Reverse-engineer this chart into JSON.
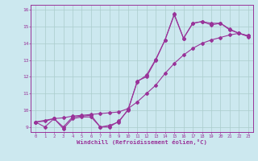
{
  "xlabel": "Windchill (Refroidissement éolien,°C)",
  "bg_color": "#cce8ef",
  "grid_color": "#aacccc",
  "line_color": "#993399",
  "xlim": [
    -0.5,
    23.5
  ],
  "ylim": [
    8.7,
    16.3
  ],
  "xticks": [
    0,
    1,
    2,
    3,
    4,
    5,
    6,
    7,
    8,
    9,
    10,
    11,
    12,
    13,
    14,
    15,
    16,
    17,
    18,
    19,
    20,
    21,
    22,
    23
  ],
  "yticks": [
    9,
    10,
    11,
    12,
    13,
    14,
    15,
    16
  ],
  "line1_x": [
    0,
    1,
    2,
    3,
    4,
    5,
    6,
    7,
    8,
    9,
    10,
    11,
    12,
    13,
    14,
    15,
    16,
    17,
    18,
    19,
    20,
    21,
    22,
    23
  ],
  "line1_y": [
    9.3,
    9.35,
    9.5,
    9.55,
    9.65,
    9.7,
    9.75,
    9.8,
    9.85,
    9.9,
    10.1,
    10.5,
    11.0,
    11.5,
    12.2,
    12.8,
    13.3,
    13.7,
    14.0,
    14.2,
    14.35,
    14.5,
    14.6,
    14.45
  ],
  "line2_x": [
    0,
    2,
    3,
    4,
    5,
    6,
    7,
    8,
    9,
    10,
    11,
    12,
    13,
    14,
    15,
    16,
    17,
    18,
    19,
    20,
    21,
    22,
    23
  ],
  "line2_y": [
    9.3,
    9.5,
    9.0,
    9.6,
    9.65,
    9.7,
    9.0,
    9.0,
    9.35,
    10.0,
    11.75,
    12.0,
    13.0,
    14.2,
    15.75,
    14.3,
    15.2,
    15.3,
    15.2,
    15.2,
    14.85,
    14.6,
    14.45
  ],
  "line3_x": [
    0,
    1,
    2,
    3,
    4,
    5,
    6,
    7,
    8,
    9,
    10,
    11,
    12,
    13,
    14,
    15,
    16,
    17,
    18,
    19,
    20,
    21,
    22,
    23
  ],
  "line3_y": [
    9.3,
    9.0,
    9.5,
    8.9,
    9.5,
    9.6,
    9.6,
    9.0,
    9.1,
    9.3,
    10.05,
    11.7,
    12.1,
    13.05,
    14.2,
    15.7,
    14.3,
    15.2,
    15.3,
    15.1,
    15.2,
    14.8,
    14.6,
    14.4
  ]
}
